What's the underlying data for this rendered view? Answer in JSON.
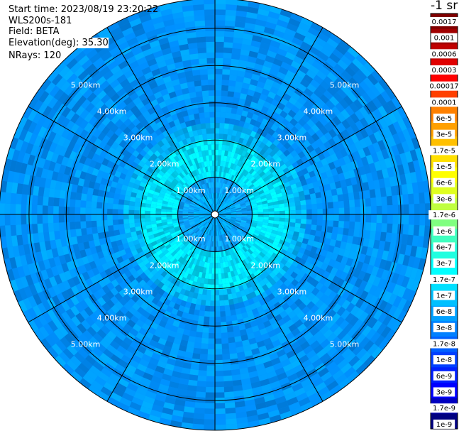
{
  "info": {
    "start_time": "Start time: 2023/08/19 23:20:22",
    "instrument": "WLS200s-181",
    "field": "Field: BETA",
    "elevation": "Elevation(deg): 35.30",
    "nrays": "NRays: 120"
  },
  "chart_data": {
    "type": "heatmap",
    "projection": "polar-ppi",
    "field": "BETA",
    "rays": 120,
    "range_max_km": 5.8,
    "range_rings_km": [
      1,
      2,
      3,
      4,
      5
    ],
    "ring_labels": [
      "1.00km",
      "2.00km",
      "3.00km",
      "4.00km",
      "5.00km"
    ],
    "spoke_step_deg": 30,
    "colorbar": {
      "unit_label": "-1 sr",
      "ticks": [
        "0.0017",
        "0.001",
        "0.0006",
        "0.0003",
        "0.00017",
        "0.0001",
        "6e-5",
        "3e-5",
        "1.7e-5",
        "1e-5",
        "6e-6",
        "3e-6",
        "1.7e-6",
        "1e-6",
        "6e-7",
        "3e-7",
        "1.7e-7",
        "1e-7",
        "6e-8",
        "3e-8",
        "1.7e-8",
        "1e-8",
        "6e-9",
        "3e-9",
        "1.7e-9",
        "1e-9"
      ],
      "colors": [
        "#800000",
        "#a00000",
        "#c00000",
        "#e00000",
        "#ff0000",
        "#ff4000",
        "#ff8000",
        "#ffa000",
        "#ffc000",
        "#ffe000",
        "#ffff00",
        "#e0ff20",
        "#c0ff40",
        "#80ff80",
        "#40ffc0",
        "#20ffe0",
        "#00ffff",
        "#00e0ff",
        "#00c0ff",
        "#00a0ff",
        "#0080ff",
        "#0060ff",
        "#0040ff",
        "#0020ff",
        "#0000ff",
        "#0000c0",
        "#000080"
      ]
    },
    "range_profile": [
      {
        "km_max": 0.6,
        "color": "#00a8ff"
      },
      {
        "km_max": 1.0,
        "color": "#0aa0ff"
      },
      {
        "km_max": 2.0,
        "color": "#00e0ff"
      },
      {
        "km_max": 2.4,
        "color": "#00b4ff"
      },
      {
        "km_max": 5.8,
        "color": "#0090ff"
      }
    ]
  }
}
